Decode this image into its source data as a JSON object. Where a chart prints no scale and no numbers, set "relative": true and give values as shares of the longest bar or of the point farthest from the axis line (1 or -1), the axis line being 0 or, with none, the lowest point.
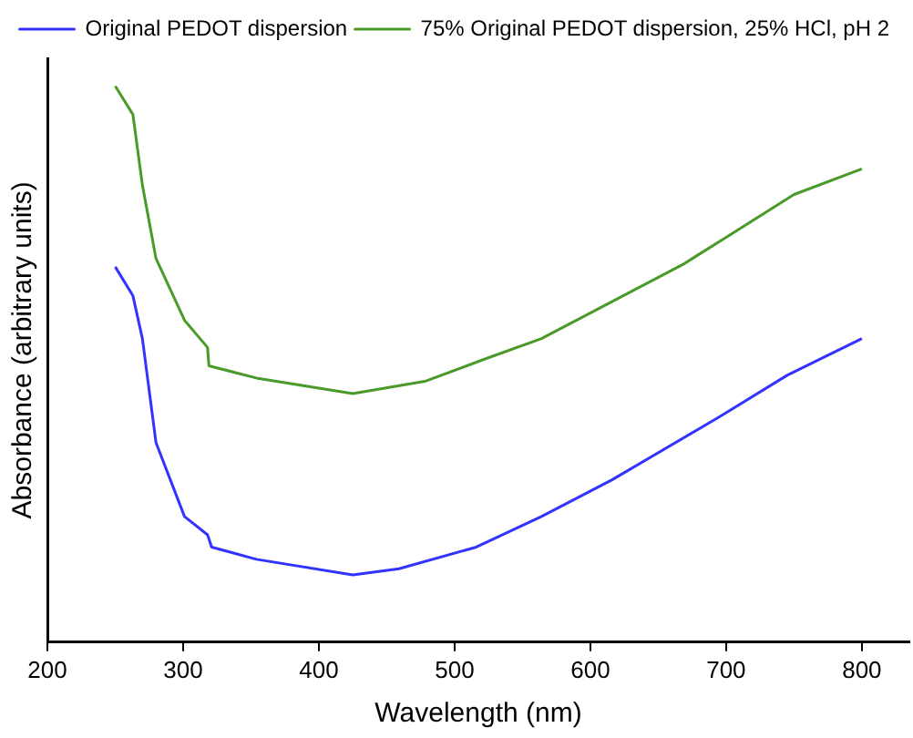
{
  "chart_data": {
    "type": "line",
    "relative": true,
    "xlabel": "Wavelength (nm)",
    "ylabel": "Absorbance (arbitrary units)",
    "xlim": [
      200,
      835
    ],
    "xticks": [
      200,
      300,
      400,
      500,
      600,
      700,
      800
    ],
    "grid": false,
    "legend": "top",
    "marker": "none",
    "line_style": "solid",
    "series": [
      {
        "name": "Original PEDOT dispersion",
        "color": "#3333ff",
        "x": [
          250,
          263,
          270,
          280,
          301,
          318,
          321,
          354,
          425,
          459,
          516,
          564,
          616,
          697,
          745,
          800
        ],
        "values": [
          0.675,
          0.623,
          0.546,
          0.359,
          0.226,
          0.193,
          0.171,
          0.149,
          0.121,
          0.132,
          0.171,
          0.226,
          0.292,
          0.408,
          0.48,
          0.546
        ]
      },
      {
        "name": "75% Original PEDOT dispersion, 25% HCl, pH 2",
        "color": "#4a9a2a",
        "x": [
          250,
          263,
          270,
          280,
          301,
          318,
          319,
          354,
          425,
          478,
          521,
          564,
          668,
          700,
          750,
          800
        ],
        "values": [
          1.0,
          0.949,
          0.822,
          0.69,
          0.579,
          0.53,
          0.497,
          0.475,
          0.447,
          0.469,
          0.508,
          0.546,
          0.679,
          0.728,
          0.805,
          0.851
        ]
      }
    ]
  }
}
